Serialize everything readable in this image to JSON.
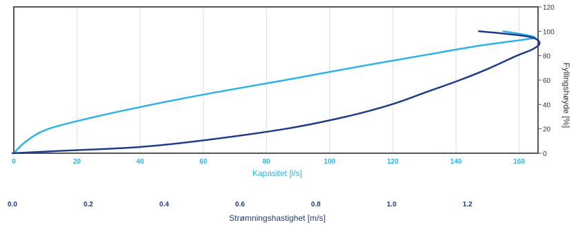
{
  "colors": {
    "capacity_axis": "#29b6e6",
    "velocity_axis": "#1f3a78",
    "capacity_curve": "#2cb3e6",
    "velocity_curve": "#1d3b87",
    "grid": "#dddddd"
  },
  "chart_data": {
    "type": "line",
    "title": "",
    "grid": true,
    "legend": "none",
    "x_capacity": {
      "label": "Kapasitet [l/s]",
      "range": [
        0,
        166
      ],
      "ticks": [
        0,
        20,
        40,
        60,
        80,
        100,
        120,
        140,
        160
      ],
      "tick_labels": [
        "0",
        "20",
        "40",
        "60",
        "80",
        "100",
        "120",
        "140",
        "160"
      ]
    },
    "x_velocity": {
      "label": "Strømningshastighet [m/s]",
      "range": [
        0,
        1.4
      ],
      "ticks": [
        0,
        0.2,
        0.4,
        0.6,
        0.8,
        1.0,
        1.2
      ],
      "tick_labels": [
        "0.0",
        "0.2",
        "0.4",
        "0.6",
        "0.8",
        "1.0",
        "1.2"
      ]
    },
    "y": {
      "label": "Fyllingshøyde [%]",
      "range": [
        0,
        120
      ],
      "ticks": [
        0,
        20,
        40,
        60,
        80,
        100,
        120
      ],
      "tick_labels": [
        "0",
        "20",
        "40",
        "60",
        "80",
        "100",
        "120"
      ]
    },
    "series": [
      {
        "axis": "capacity",
        "points": [
          [
            0,
            0
          ],
          [
            4,
            10
          ],
          [
            11,
            20
          ],
          [
            26,
            30
          ],
          [
            44,
            40
          ],
          [
            64,
            50
          ],
          [
            86,
            60
          ],
          [
            107,
            70
          ],
          [
            129,
            80
          ],
          [
            147,
            88
          ],
          [
            161,
            93
          ],
          [
            165,
            95
          ],
          [
            160,
            98
          ],
          [
            155,
            100
          ]
        ]
      },
      {
        "axis": "velocity",
        "points": [
          [
            0,
            0
          ],
          [
            0.13,
            2
          ],
          [
            0.33,
            5
          ],
          [
            0.49,
            10
          ],
          [
            0.72,
            20
          ],
          [
            0.88,
            30
          ],
          [
            1.0,
            40
          ],
          [
            1.09,
            50
          ],
          [
            1.18,
            60
          ],
          [
            1.26,
            70
          ],
          [
            1.33,
            80
          ],
          [
            1.37,
            85
          ],
          [
            1.39,
            90
          ],
          [
            1.37,
            95
          ],
          [
            1.3,
            98
          ],
          [
            1.23,
            100
          ]
        ]
      }
    ]
  }
}
